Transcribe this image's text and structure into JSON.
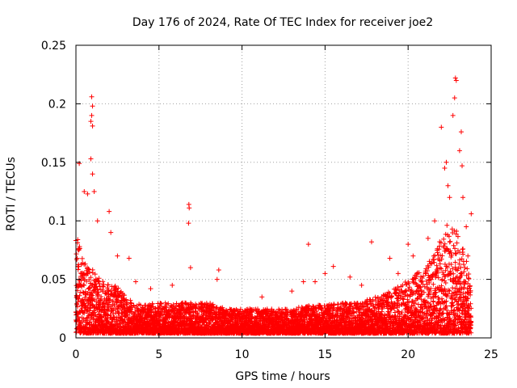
{
  "chart_data": {
    "type": "scatter",
    "title": "Day 176 of 2024, Rate Of TEC Index for receiver joe2",
    "xlabel": "GPS time / hours",
    "ylabel": "ROTI / TECUs",
    "xlim": [
      0,
      25
    ],
    "ylim": [
      0,
      0.25
    ],
    "x_ticks": [
      0,
      5,
      10,
      15,
      20,
      25
    ],
    "x_tick_labels": [
      "0",
      "5",
      "10",
      "15",
      "20",
      "25"
    ],
    "y_ticks": [
      0,
      0.05,
      0.1,
      0.15,
      0.2,
      0.25
    ],
    "y_tick_labels": [
      "0",
      "0.05",
      "0.1",
      "0.15",
      "0.2",
      "0.25"
    ],
    "grid": true,
    "marker": "+",
    "series": [
      {
        "name": "ROTI",
        "color": "#ff0000",
        "envelope": {
          "x": [
            0,
            0.5,
            1,
            1.5,
            2,
            2.5,
            3,
            3.5,
            4,
            5,
            6,
            7,
            8,
            9,
            10,
            11,
            12,
            13,
            14,
            15,
            16,
            17,
            18,
            19,
            20,
            20.5,
            21,
            21.5,
            22,
            22.5,
            23,
            23.5,
            23.8
          ],
          "y": [
            0.09,
            0.065,
            0.06,
            0.05,
            0.045,
            0.045,
            0.035,
            0.03,
            0.028,
            0.03,
            0.03,
            0.03,
            0.03,
            0.025,
            0.025,
            0.025,
            0.025,
            0.025,
            0.028,
            0.028,
            0.03,
            0.03,
            0.035,
            0.04,
            0.05,
            0.055,
            0.06,
            0.07,
            0.09,
            0.1,
            0.09,
            0.07,
            0.04
          ]
        },
        "notable_points": [
          {
            "x": 0.2,
            "y": 0.149
          },
          {
            "x": 0.5,
            "y": 0.125
          },
          {
            "x": 0.7,
            "y": 0.123
          },
          {
            "x": 0.95,
            "y": 0.206
          },
          {
            "x": 1.0,
            "y": 0.198
          },
          {
            "x": 0.95,
            "y": 0.19
          },
          {
            "x": 0.9,
            "y": 0.185
          },
          {
            "x": 1.0,
            "y": 0.181
          },
          {
            "x": 0.9,
            "y": 0.153
          },
          {
            "x": 1.0,
            "y": 0.14
          },
          {
            "x": 1.1,
            "y": 0.125
          },
          {
            "x": 1.3,
            "y": 0.1
          },
          {
            "x": 2.0,
            "y": 0.108
          },
          {
            "x": 2.1,
            "y": 0.09
          },
          {
            "x": 2.5,
            "y": 0.07
          },
          {
            "x": 3.2,
            "y": 0.068
          },
          {
            "x": 3.6,
            "y": 0.048
          },
          {
            "x": 4.5,
            "y": 0.042
          },
          {
            "x": 5.8,
            "y": 0.045
          },
          {
            "x": 6.8,
            "y": 0.114
          },
          {
            "x": 6.82,
            "y": 0.111
          },
          {
            "x": 6.78,
            "y": 0.098
          },
          {
            "x": 6.9,
            "y": 0.06
          },
          {
            "x": 8.6,
            "y": 0.058
          },
          {
            "x": 8.5,
            "y": 0.05
          },
          {
            "x": 11.2,
            "y": 0.035
          },
          {
            "x": 13.0,
            "y": 0.04
          },
          {
            "x": 13.7,
            "y": 0.048
          },
          {
            "x": 14.0,
            "y": 0.08
          },
          {
            "x": 14.4,
            "y": 0.048
          },
          {
            "x": 15.0,
            "y": 0.055
          },
          {
            "x": 15.5,
            "y": 0.061
          },
          {
            "x": 16.5,
            "y": 0.052
          },
          {
            "x": 17.2,
            "y": 0.045
          },
          {
            "x": 17.8,
            "y": 0.082
          },
          {
            "x": 18.9,
            "y": 0.068
          },
          {
            "x": 19.4,
            "y": 0.055
          },
          {
            "x": 20.0,
            "y": 0.08
          },
          {
            "x": 20.3,
            "y": 0.07
          },
          {
            "x": 21.2,
            "y": 0.085
          },
          {
            "x": 21.6,
            "y": 0.1
          },
          {
            "x": 22.0,
            "y": 0.18
          },
          {
            "x": 22.2,
            "y": 0.145
          },
          {
            "x": 22.3,
            "y": 0.15
          },
          {
            "x": 22.4,
            "y": 0.13
          },
          {
            "x": 22.5,
            "y": 0.12
          },
          {
            "x": 22.7,
            "y": 0.19
          },
          {
            "x": 22.8,
            "y": 0.205
          },
          {
            "x": 22.85,
            "y": 0.222
          },
          {
            "x": 22.9,
            "y": 0.22
          },
          {
            "x": 23.1,
            "y": 0.16
          },
          {
            "x": 23.2,
            "y": 0.176
          },
          {
            "x": 23.25,
            "y": 0.147
          },
          {
            "x": 23.3,
            "y": 0.12
          },
          {
            "x": 23.5,
            "y": 0.095
          },
          {
            "x": 23.8,
            "y": 0.106
          },
          {
            "x": 23.6,
            "y": 0.07
          }
        ]
      }
    ]
  }
}
